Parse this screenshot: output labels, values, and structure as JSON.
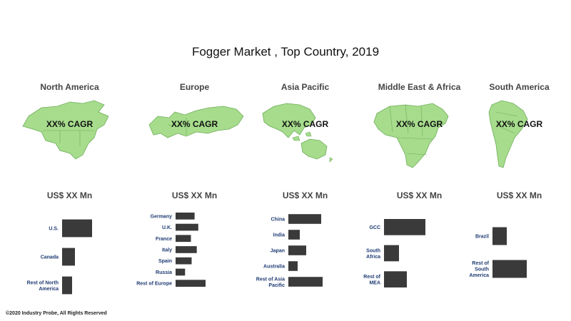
{
  "title": "Fogger Market , Top Country, 2019",
  "footer": "©2020 Industry Probe, All Rights Reserved",
  "colors": {
    "map_fill": "#a6dc8c",
    "bar": "#3a3a3a",
    "label": "#1f3b73"
  },
  "chart_data": [
    {
      "type": "bar",
      "region": "North America",
      "cagr_label": "XX% CAGR",
      "unit_label": "US$ XX Mn",
      "categories": [
        "U.S.",
        "Canada",
        "Rest of North America"
      ],
      "values": [
        42,
        18,
        14
      ]
    },
    {
      "type": "bar",
      "region": "Europe",
      "cagr_label": "XX% CAGR",
      "unit_label": "US$ XX Mn",
      "categories": [
        "Germany",
        "U.K.",
        "France",
        "Italy",
        "Spain",
        "Russia",
        "Rest of Europe"
      ],
      "values": [
        26,
        31,
        21,
        29,
        22,
        13,
        41
      ]
    },
    {
      "type": "bar",
      "region": "Asia Pacific",
      "cagr_label": "XX% CAGR",
      "unit_label": "US$ XX Mn",
      "categories": [
        "China",
        "India",
        "Japan",
        "Australia",
        "Rest of Asia Pacific"
      ],
      "values": [
        46,
        16,
        25,
        13,
        48
      ]
    },
    {
      "type": "bar",
      "region": "Middle East & Africa",
      "cagr_label": "XX% CAGR",
      "unit_label": "US$ XX Mn",
      "categories": [
        "GCC",
        "South Africa",
        "Rest of MEA"
      ],
      "values": [
        58,
        21,
        32
      ]
    },
    {
      "type": "bar",
      "region": "South America",
      "cagr_label": "XX% CAGR",
      "unit_label": "US$ XX Mn",
      "categories": [
        "Brazil",
        "Rest of South America"
      ],
      "values": [
        20,
        48
      ]
    }
  ]
}
